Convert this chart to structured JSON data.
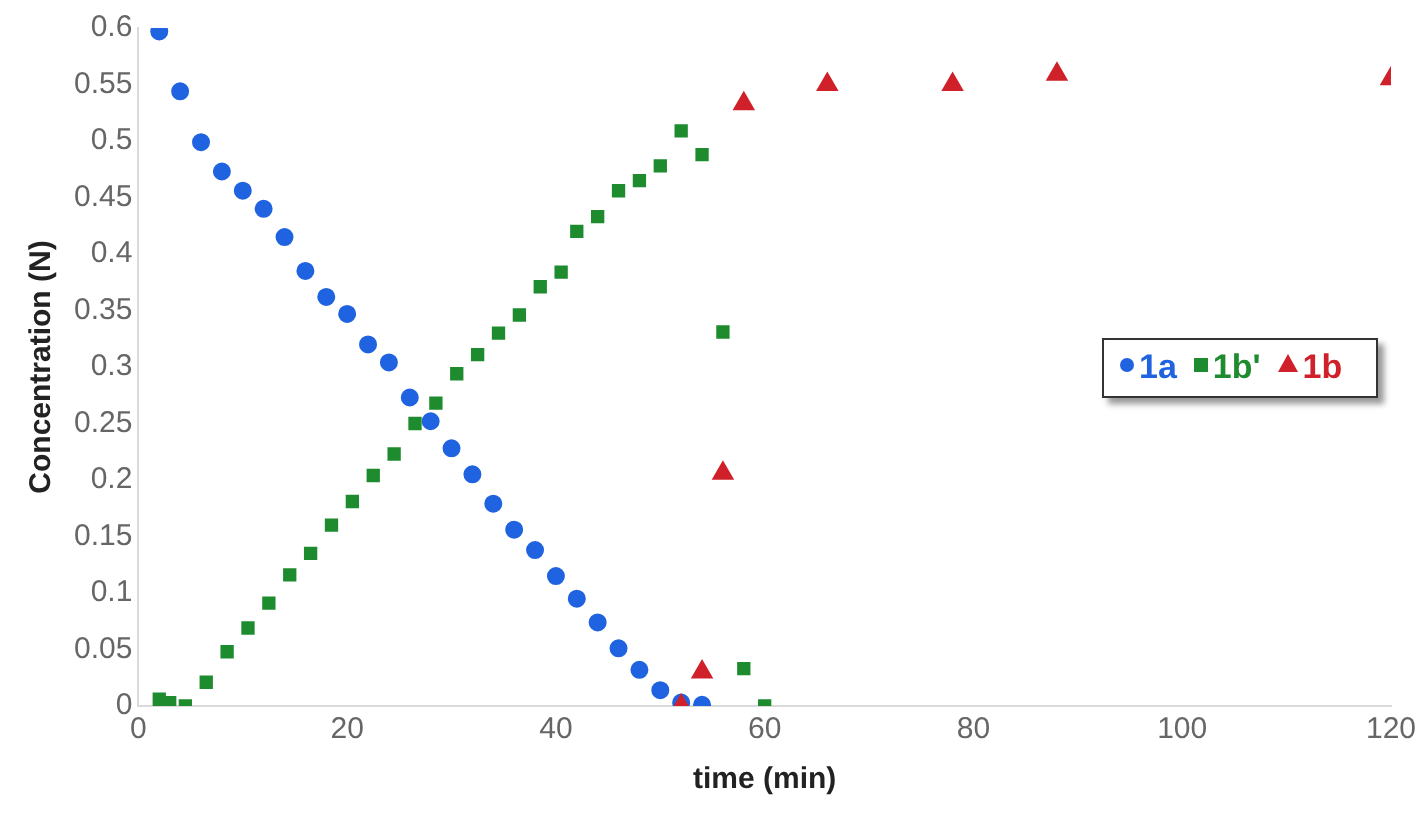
{
  "chart_data": {
    "type": "scatter",
    "xlabel": "time (min)",
    "ylabel": "Concentration (N)",
    "xlim": [
      0,
      120
    ],
    "xticks": [
      0,
      20,
      40,
      60,
      80,
      100,
      120
    ],
    "ylim": [
      0,
      0.6
    ],
    "yticks": [
      0,
      0.05,
      0.1,
      0.15,
      0.2,
      0.25,
      0.3,
      0.35,
      0.4,
      0.45,
      0.5,
      0.55,
      0.6
    ],
    "grid": false,
    "legend": "right",
    "series": [
      {
        "name": "1a",
        "color": "#1f63e0",
        "marker": "circle",
        "x": [
          2,
          4,
          6,
          8,
          10,
          12,
          14,
          16,
          18,
          20,
          22,
          24,
          26,
          28,
          30,
          32,
          34,
          36,
          38,
          40,
          42,
          44,
          46,
          48,
          50,
          52,
          54
        ],
        "values": [
          0.597,
          0.544,
          0.499,
          0.473,
          0.456,
          0.44,
          0.415,
          0.385,
          0.362,
          0.347,
          0.32,
          0.304,
          0.273,
          0.252,
          0.228,
          0.205,
          0.179,
          0.156,
          0.138,
          0.115,
          0.095,
          0.074,
          0.051,
          0.032,
          0.014,
          0.003,
          0.001
        ]
      },
      {
        "name": "1b'",
        "color": "#1e8c2e",
        "marker": "square",
        "x": [
          2,
          3,
          4.5,
          6.5,
          8.5,
          10.5,
          12.5,
          14.5,
          16.5,
          18.5,
          20.5,
          22.5,
          24.5,
          26.5,
          28.5,
          30.5,
          32.5,
          34.5,
          36.5,
          38.5,
          40.5,
          42,
          44,
          46,
          48,
          50,
          52,
          54,
          56,
          58,
          60
        ],
        "values": [
          0.006,
          0.003,
          0,
          0.021,
          0.048,
          0.069,
          0.091,
          0.116,
          0.135,
          0.16,
          0.181,
          0.204,
          0.223,
          0.25,
          0.268,
          0.294,
          0.311,
          0.33,
          0.346,
          0.371,
          0.384,
          0.42,
          0.433,
          0.456,
          0.465,
          0.478,
          0.509,
          0.488,
          0.331,
          0.033,
          0
        ]
      },
      {
        "name": "1b",
        "color": "#d0202a",
        "marker": "triangle",
        "x": [
          52,
          54,
          56,
          58,
          66,
          78,
          88,
          120
        ],
        "values": [
          0,
          0.03,
          0.206,
          0.533,
          0.55,
          0.55,
          0.559,
          0.555
        ]
      }
    ]
  }
}
